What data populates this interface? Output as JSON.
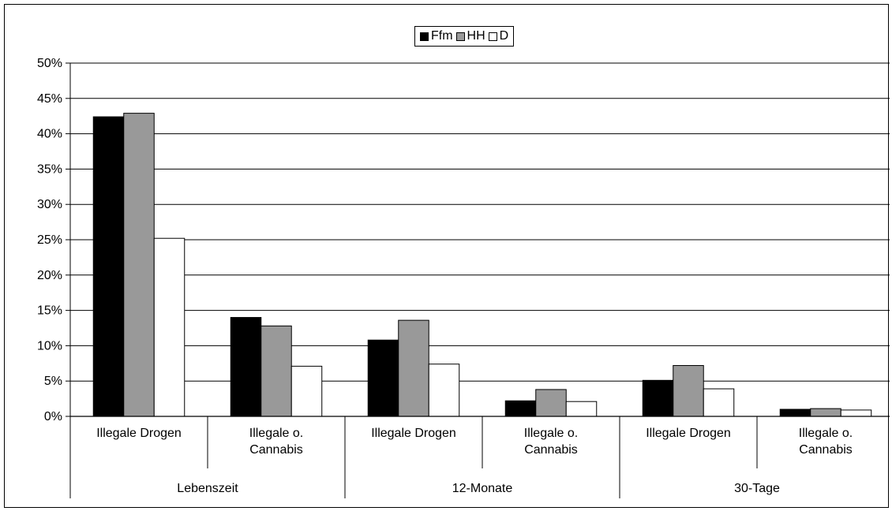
{
  "chart_data": {
    "type": "bar",
    "title": "",
    "xlabel": "",
    "ylabel": "",
    "ylim": [
      0,
      50
    ],
    "ytick_step": 5,
    "ytick_format": "percent",
    "grid": true,
    "legend_position": "top-center",
    "categories": [
      {
        "label_lines": [
          "Illegale Drogen"
        ],
        "group": "Lebenszeit"
      },
      {
        "label_lines": [
          "Illegale o.",
          "Cannabis"
        ],
        "group": "Lebenszeit"
      },
      {
        "label_lines": [
          "Illegale Drogen"
        ],
        "group": "12-Monate"
      },
      {
        "label_lines": [
          "Illegale o.",
          "Cannabis"
        ],
        "group": "12-Monate"
      },
      {
        "label_lines": [
          "Illegale Drogen"
        ],
        "group": "30-Tage"
      },
      {
        "label_lines": [
          "Illegale o.",
          "Cannabis"
        ],
        "group": "30-Tage"
      }
    ],
    "groups": [
      "Lebenszeit",
      "12-Monate",
      "30-Tage"
    ],
    "series": [
      {
        "name": "Ffm",
        "color": "#000000",
        "values": [
          42.4,
          14.0,
          10.8,
          2.2,
          5.1,
          1.0
        ]
      },
      {
        "name": "HH",
        "color": "#999999",
        "values": [
          42.9,
          12.8,
          13.6,
          3.8,
          7.2,
          1.1
        ]
      },
      {
        "name": "D",
        "color": "#ffffff",
        "values": [
          25.2,
          7.1,
          7.4,
          2.1,
          3.9,
          0.9
        ]
      }
    ]
  }
}
